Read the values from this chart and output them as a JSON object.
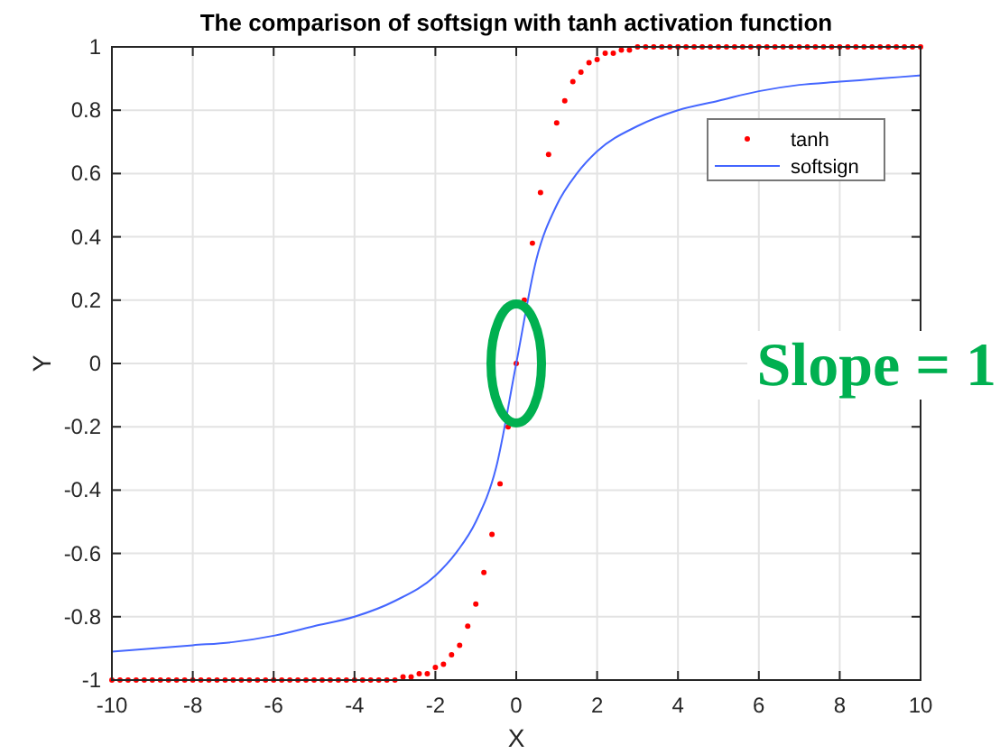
{
  "chart_data": {
    "type": "line",
    "title": "The comparison of softsign with tanh activation function",
    "xlabel": "X",
    "ylabel": "Y",
    "xlim": [
      -10,
      10
    ],
    "xticks": [
      -10,
      -8,
      -6,
      -4,
      -2,
      0,
      2,
      4,
      6,
      8,
      10
    ],
    "ylim": [
      -1,
      1
    ],
    "yticks": [
      -1,
      -0.8,
      -0.6,
      -0.4,
      -0.2,
      0,
      0.2,
      0.4,
      0.6,
      0.8,
      1
    ],
    "grid": true,
    "legend": "top right",
    "annotations": [
      "Slope = 1"
    ],
    "series": [
      {
        "name": "tanh",
        "type": "scatter",
        "marker": "circle",
        "color": "#ff0000",
        "x": [
          -10,
          -9.8,
          -9.6,
          -9.4,
          -9.2,
          -9,
          -8.8,
          -8.6,
          -8.4,
          -8.2,
          -8,
          -7.8,
          -7.6,
          -7.4,
          -7.2,
          -7,
          -6.8,
          -6.6,
          -6.4,
          -6.2,
          -6,
          -5.8,
          -5.6,
          -5.4,
          -5.2,
          -5,
          -4.8,
          -4.6,
          -4.4,
          -4.2,
          -4,
          -3.8,
          -3.6,
          -3.4,
          -3.2,
          -3,
          -2.8,
          -2.6,
          -2.4,
          -2.2,
          -2,
          -1.8,
          -1.6,
          -1.4,
          -1.2,
          -1,
          -0.8,
          -0.6,
          -0.4,
          -0.2,
          0,
          0.2,
          0.4,
          0.6,
          0.8,
          1,
          1.2,
          1.4,
          1.6,
          1.8,
          2,
          2.2,
          2.4,
          2.6,
          2.8,
          3,
          3.2,
          3.4,
          3.6,
          3.8,
          4,
          4.2,
          4.4,
          4.6,
          4.8,
          5,
          5.2,
          5.4,
          5.6,
          5.8,
          6,
          6.2,
          6.4,
          6.6,
          6.8,
          7,
          7.2,
          7.4,
          7.6,
          7.8,
          8,
          8.2,
          8.4,
          8.6,
          8.8,
          9,
          9.2,
          9.4,
          9.6,
          9.8,
          10
        ],
        "values": [
          -1,
          -1,
          -1,
          -1,
          -1,
          -1,
          -1,
          -1,
          -1,
          -1,
          -1,
          -1,
          -1,
          -1,
          -1,
          -1,
          -1,
          -1,
          -1,
          -1,
          -1,
          -1,
          -1,
          -1,
          -1,
          -1,
          -1,
          -1,
          -1,
          -1,
          -1,
          -1,
          -1,
          -1,
          -1,
          -1,
          -0.99,
          -0.99,
          -0.98,
          -0.98,
          -0.96,
          -0.95,
          -0.92,
          -0.89,
          -0.83,
          -0.76,
          -0.66,
          -0.54,
          -0.38,
          -0.2,
          0,
          0.2,
          0.38,
          0.54,
          0.66,
          0.76,
          0.83,
          0.89,
          0.92,
          0.95,
          0.96,
          0.98,
          0.98,
          0.99,
          0.99,
          1,
          1,
          1,
          1,
          1,
          1,
          1,
          1,
          1,
          1,
          1,
          1,
          1,
          1,
          1,
          1,
          1,
          1,
          1,
          1,
          1,
          1,
          1,
          1,
          1,
          1,
          1,
          1,
          1,
          1,
          1,
          1,
          1,
          1,
          1,
          1
        ]
      },
      {
        "name": "softsign",
        "type": "line",
        "marker": "none",
        "line_style": "solid",
        "color": "#4466ff",
        "x": [
          -10,
          -9,
          -8,
          -7,
          -6,
          -5,
          -4,
          -3,
          -2,
          -1.5,
          -1,
          -0.5,
          0,
          0.5,
          1,
          1.5,
          2,
          3,
          4,
          5,
          6,
          7,
          8,
          9,
          10
        ],
        "values": [
          -0.91,
          -0.9,
          -0.89,
          -0.88,
          -0.86,
          -0.83,
          -0.8,
          -0.75,
          -0.67,
          -0.6,
          -0.5,
          -0.33,
          0,
          0.33,
          0.5,
          0.6,
          0.67,
          0.75,
          0.8,
          0.83,
          0.86,
          0.88,
          0.89,
          0.9,
          0.91
        ]
      }
    ]
  }
}
